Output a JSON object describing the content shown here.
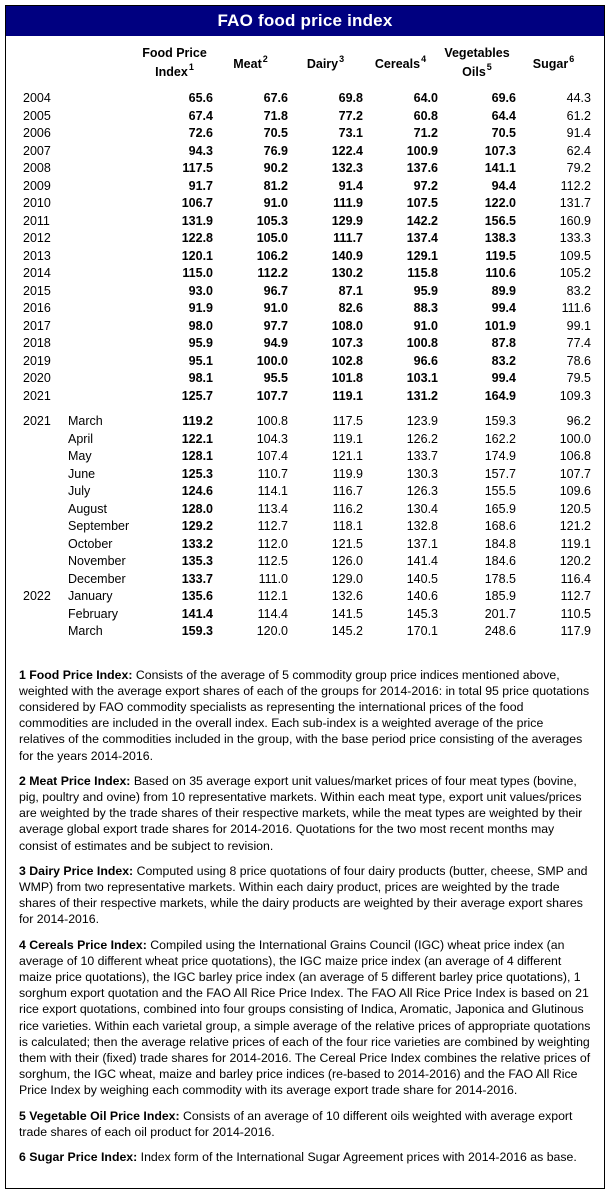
{
  "title": "FAO food price index",
  "colors": {
    "title_bg": "#000080",
    "title_text": "#ffffff",
    "border": "#000000",
    "body_text": "#000000"
  },
  "table": {
    "columns": [
      {
        "lines": [
          "Food Price",
          "Index"
        ],
        "sup": "1"
      },
      {
        "lines": [
          "Meat"
        ],
        "sup": "2"
      },
      {
        "lines": [
          "Dairy"
        ],
        "sup": "3"
      },
      {
        "lines": [
          "Cereals"
        ],
        "sup": "4"
      },
      {
        "lines": [
          "Vegetables",
          "Oils"
        ],
        "sup": "5"
      },
      {
        "lines": [
          "Sugar"
        ],
        "sup": "6"
      }
    ],
    "annual_rows": [
      {
        "year": "2004",
        "values": [
          "65.6",
          "67.6",
          "69.8",
          "64.0",
          "69.6",
          "44.3"
        ]
      },
      {
        "year": "2005",
        "values": [
          "67.4",
          "71.8",
          "77.2",
          "60.8",
          "64.4",
          "61.2"
        ]
      },
      {
        "year": "2006",
        "values": [
          "72.6",
          "70.5",
          "73.1",
          "71.2",
          "70.5",
          "91.4"
        ]
      },
      {
        "year": "2007",
        "values": [
          "94.3",
          "76.9",
          "122.4",
          "100.9",
          "107.3",
          "62.4"
        ]
      },
      {
        "year": "2008",
        "values": [
          "117.5",
          "90.2",
          "132.3",
          "137.6",
          "141.1",
          "79.2"
        ]
      },
      {
        "year": "2009",
        "values": [
          "91.7",
          "81.2",
          "91.4",
          "97.2",
          "94.4",
          "112.2"
        ]
      },
      {
        "year": "2010",
        "values": [
          "106.7",
          "91.0",
          "111.9",
          "107.5",
          "122.0",
          "131.7"
        ]
      },
      {
        "year": "2011",
        "values": [
          "131.9",
          "105.3",
          "129.9",
          "142.2",
          "156.5",
          "160.9"
        ]
      },
      {
        "year": "2012",
        "values": [
          "122.8",
          "105.0",
          "111.7",
          "137.4",
          "138.3",
          "133.3"
        ]
      },
      {
        "year": "2013",
        "values": [
          "120.1",
          "106.2",
          "140.9",
          "129.1",
          "119.5",
          "109.5"
        ]
      },
      {
        "year": "2014",
        "values": [
          "115.0",
          "112.2",
          "130.2",
          "115.8",
          "110.6",
          "105.2"
        ]
      },
      {
        "year": "2015",
        "values": [
          "93.0",
          "96.7",
          "87.1",
          "95.9",
          "89.9",
          "83.2"
        ]
      },
      {
        "year": "2016",
        "values": [
          "91.9",
          "91.0",
          "82.6",
          "88.3",
          "99.4",
          "111.6"
        ]
      },
      {
        "year": "2017",
        "values": [
          "98.0",
          "97.7",
          "108.0",
          "91.0",
          "101.9",
          "99.1"
        ]
      },
      {
        "year": "2018",
        "values": [
          "95.9",
          "94.9",
          "107.3",
          "100.8",
          "87.8",
          "77.4"
        ]
      },
      {
        "year": "2019",
        "values": [
          "95.1",
          "100.0",
          "102.8",
          "96.6",
          "83.2",
          "78.6"
        ]
      },
      {
        "year": "2020",
        "values": [
          "98.1",
          "95.5",
          "101.8",
          "103.1",
          "99.4",
          "79.5"
        ]
      },
      {
        "year": "2021",
        "values": [
          "125.7",
          "107.7",
          "119.1",
          "131.2",
          "164.9",
          "109.3"
        ]
      }
    ],
    "monthly_rows": [
      {
        "year": "2021",
        "month": "March",
        "values": [
          "119.2",
          "100.8",
          "117.5",
          "123.9",
          "159.3",
          "96.2"
        ]
      },
      {
        "year": "",
        "month": "April",
        "values": [
          "122.1",
          "104.3",
          "119.1",
          "126.2",
          "162.2",
          "100.0"
        ]
      },
      {
        "year": "",
        "month": "May",
        "values": [
          "128.1",
          "107.4",
          "121.1",
          "133.7",
          "174.9",
          "106.8"
        ]
      },
      {
        "year": "",
        "month": "June",
        "values": [
          "125.3",
          "110.7",
          "119.9",
          "130.3",
          "157.7",
          "107.7"
        ]
      },
      {
        "year": "",
        "month": "July",
        "values": [
          "124.6",
          "114.1",
          "116.7",
          "126.3",
          "155.5",
          "109.6"
        ]
      },
      {
        "year": "",
        "month": "August",
        "values": [
          "128.0",
          "113.4",
          "116.2",
          "130.4",
          "165.9",
          "120.5"
        ]
      },
      {
        "year": "",
        "month": "September",
        "values": [
          "129.2",
          "112.7",
          "118.1",
          "132.8",
          "168.6",
          "121.2"
        ]
      },
      {
        "year": "",
        "month": "October",
        "values": [
          "133.2",
          "112.0",
          "121.5",
          "137.1",
          "184.8",
          "119.1"
        ]
      },
      {
        "year": "",
        "month": "November",
        "values": [
          "135.3",
          "112.5",
          "126.0",
          "141.4",
          "184.6",
          "120.2"
        ]
      },
      {
        "year": "",
        "month": "December",
        "values": [
          "133.7",
          "111.0",
          "129.0",
          "140.5",
          "178.5",
          "116.4"
        ]
      },
      {
        "year": "2022",
        "month": "January",
        "values": [
          "135.6",
          "112.1",
          "132.6",
          "140.6",
          "185.9",
          "112.7"
        ]
      },
      {
        "year": "",
        "month": "February",
        "values": [
          "141.4",
          "114.4",
          "141.5",
          "145.3",
          "201.7",
          "110.5"
        ]
      },
      {
        "year": "",
        "month": "March",
        "values": [
          "159.3",
          "120.0",
          "145.2",
          "170.1",
          "248.6",
          "117.9"
        ]
      }
    ]
  },
  "footnotes": [
    {
      "lead": "1 Food Price Index:",
      "text": "Consists of the average of 5 commodity group price indices mentioned above, weighted with the average export shares of each of the groups for 2014-2016: in total 95 price quotations considered by FAO commodity specialists as representing the international prices of the food commodities are included in the overall index. Each sub-index is a weighted average of the price relatives of the commodities included in the group, with the base period price consisting of the averages for the years 2014-2016."
    },
    {
      "lead": "2 Meat Price Index:",
      "text": "Based on 35 average export unit values/market prices of four meat types (bovine, pig, poultry and ovine) from 10 representative markets. Within each meat type, export unit values/prices are weighted by the trade shares of their respective markets, while the meat types are weighted by their average global export trade shares for 2014-2016. Quotations for the two most recent months may consist of estimates and be subject to revision."
    },
    {
      "lead": "3 Dairy Price Index:",
      "text": "Computed using 8 price quotations of four dairy products (butter, cheese, SMP and WMP) from two representative markets. Within each dairy product, prices are weighted by the trade shares of their respective markets, while the dairy products are weighted by their average export shares for 2014-2016."
    },
    {
      "lead": "4 Cereals Price Index:",
      "text": "Compiled using the International Grains Council (IGC) wheat price index (an average of 10 different wheat price quotations), the IGC maize price index (an average of 4 different maize price quotations), the IGC barley price index (an average of 5 different barley price quotations), 1 sorghum export quotation and the FAO All Rice Price Index. The FAO All Rice Price Index is based on 21 rice export quotations, combined into four groups consisting of Indica, Aromatic, Japonica and Glutinous rice varieties. Within each varietal group, a simple average of the relative prices of appropriate quotations is calculated; then the average relative prices of each of the four rice varieties are combined by weighting them with their (fixed) trade shares for 2014-2016. The Cereal Price Index combines the relative prices of sorghum, the IGC wheat, maize and barley price indices (re-based to 2014-2016) and the FAO All Rice Price Index by weighing each commodity with its average export trade share for 2014-2016."
    },
    {
      "lead": "5 Vegetable Oil Price Index:",
      "text": "Consists of an average of 10 different oils weighted with average export trade shares of each oil product for 2014-2016."
    },
    {
      "lead": "6 Sugar Price Index:",
      "text": "Index form of the International Sugar Agreement prices with 2014-2016 as base."
    }
  ]
}
